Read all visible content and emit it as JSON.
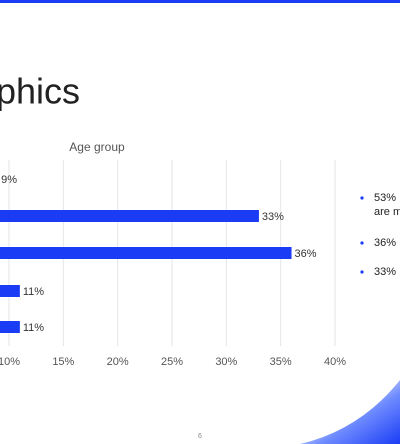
{
  "slide": {
    "title": "phics",
    "page_number": "6",
    "bullets": [
      "53%",
      "are m",
      "36%",
      "33%"
    ]
  },
  "chart_data": {
    "type": "bar",
    "orientation": "horizontal",
    "title": "Age group",
    "categories": [
      null,
      null,
      null,
      null,
      null
    ],
    "values": [
      9,
      33,
      36,
      11,
      11
    ],
    "value_labels": [
      "9%",
      "33%",
      "36%",
      "11%",
      "11%"
    ],
    "color": "#1a3cf5",
    "xlim": [
      0,
      40
    ],
    "xticks": [
      {
        "value": 10,
        "label": "10%"
      },
      {
        "value": 15,
        "label": "15%"
      },
      {
        "value": 20,
        "label": "20%"
      },
      {
        "value": 25,
        "label": "25%"
      },
      {
        "value": 30,
        "label": "30%"
      },
      {
        "value": 35,
        "label": "35%"
      },
      {
        "value": 40,
        "label": "40%"
      }
    ],
    "grid": true
  }
}
